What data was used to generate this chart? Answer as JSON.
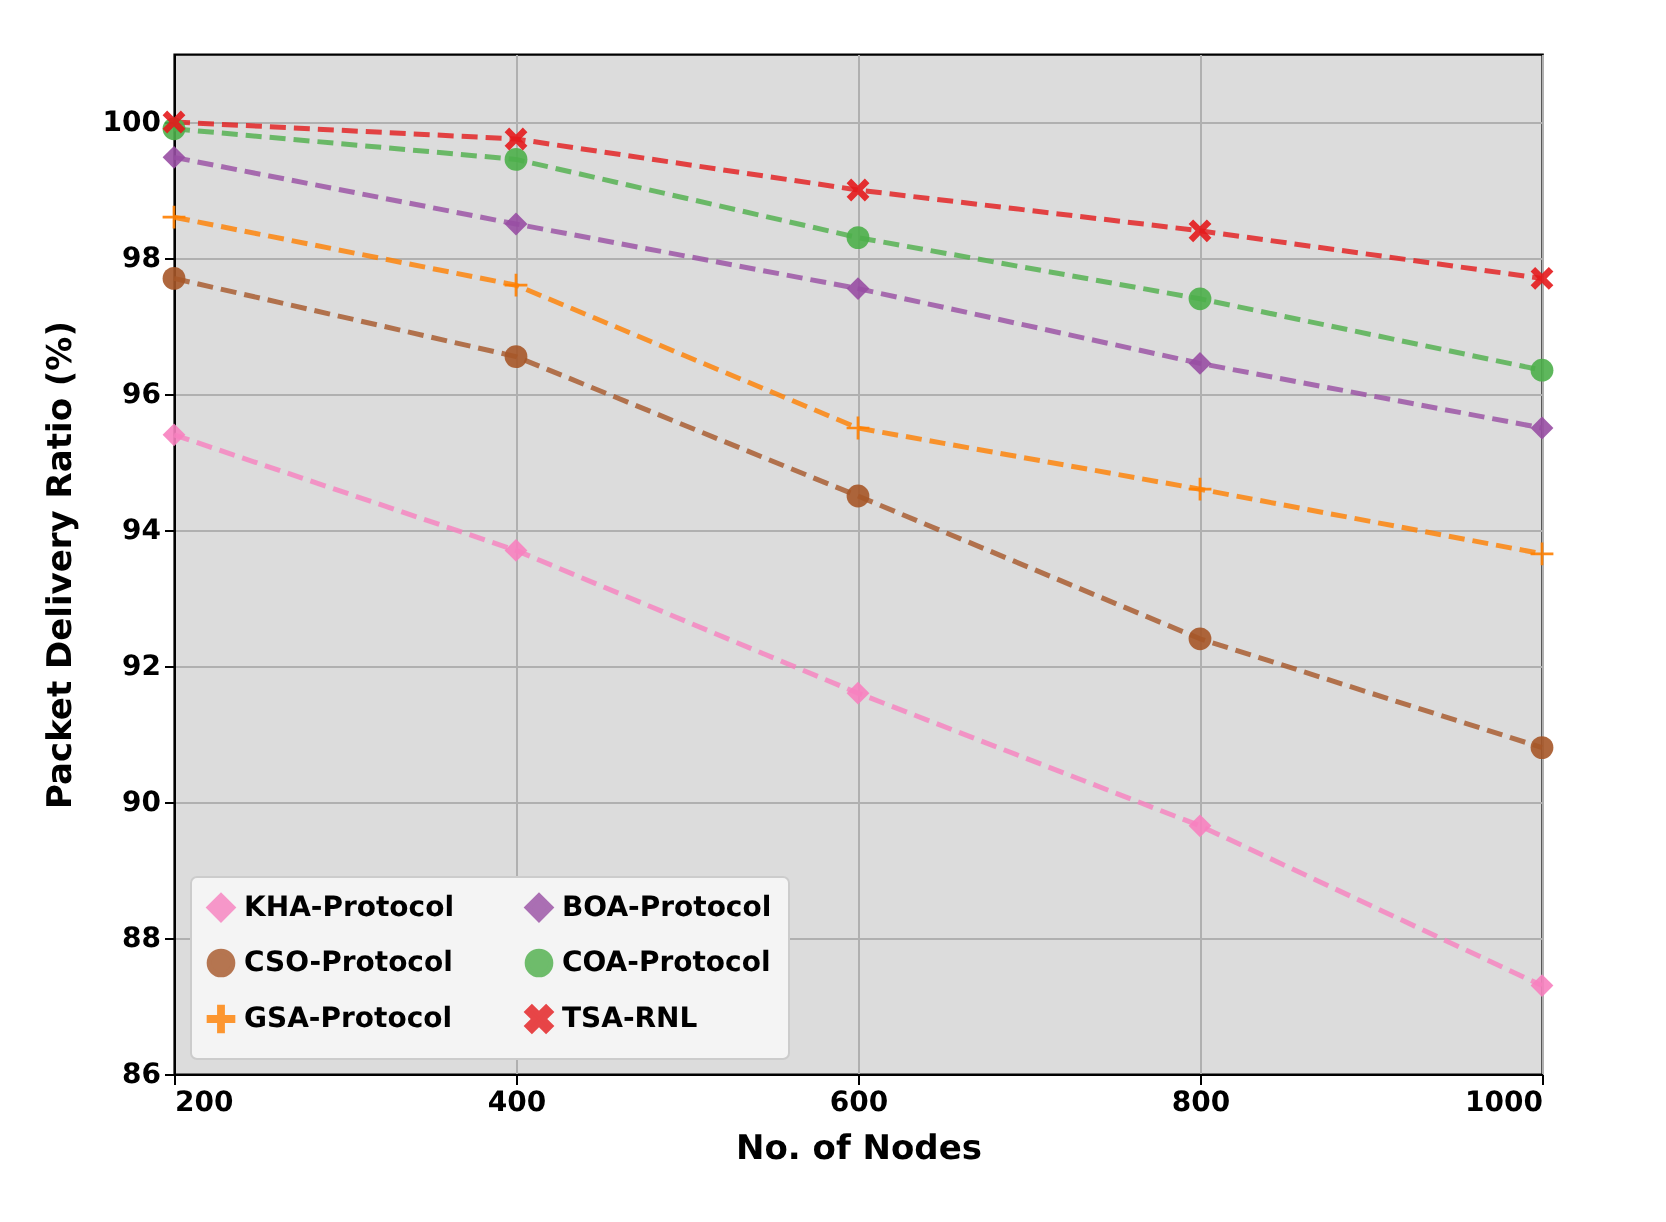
{
  "chart_data": {
    "type": "line",
    "xlabel": "No. of Nodes",
    "ylabel": "Packet Delivery Ratio (%)",
    "x": [
      200,
      400,
      600,
      800,
      1000
    ],
    "xlim": [
      200,
      1000
    ],
    "xticks": [
      200,
      400,
      600,
      800,
      1000
    ],
    "ylim": [
      86,
      101
    ],
    "yticks": [
      86,
      88,
      90,
      92,
      94,
      96,
      98,
      100
    ],
    "grid": true,
    "legend": "bottom left",
    "line_style": "dashed",
    "series": [
      {
        "name": "KHA-Protocol",
        "color": "#f781bf",
        "marker": "diamond",
        "values": [
          95.4,
          93.7,
          91.6,
          89.65,
          87.3
        ]
      },
      {
        "name": "CSO-Protocol",
        "color": "#a65628",
        "marker": "circle",
        "values": [
          97.7,
          96.55,
          94.5,
          92.4,
          90.8
        ]
      },
      {
        "name": "GSA-Protocol",
        "color": "#ff7f00",
        "marker": "plus",
        "values": [
          98.6,
          97.6,
          95.5,
          94.6,
          93.65
        ]
      },
      {
        "name": "BOA-Protocol",
        "color": "#984ea3",
        "marker": "diamond",
        "values": [
          99.48,
          98.5,
          97.55,
          96.45,
          95.5
        ]
      },
      {
        "name": "COA-Protocol",
        "color": "#4daf4a",
        "marker": "circle",
        "values": [
          99.9,
          99.45,
          98.3,
          97.4,
          96.35
        ]
      },
      {
        "name": "TSA-RNL",
        "color": "#e41a1c",
        "marker": "cross",
        "values": [
          100.0,
          99.75,
          99.0,
          98.4,
          97.7
        ]
      }
    ]
  }
}
